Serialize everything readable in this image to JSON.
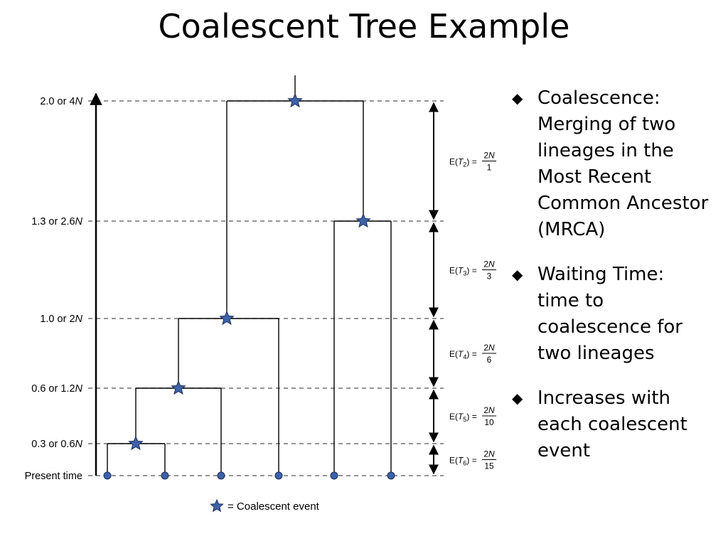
{
  "title": "Coalescent Tree Example",
  "levels": [
    {
      "id": "t0",
      "label": "Present time"
    },
    {
      "id": "t1",
      "label": "0.3 or 0.6",
      "label_italic": "N"
    },
    {
      "id": "t2",
      "label": "0.6 or 1.2",
      "label_italic": "N"
    },
    {
      "id": "t3",
      "label": "1.0 or 2",
      "label_italic": "N"
    },
    {
      "id": "t4",
      "label": "1.3 or 2.6",
      "label_italic": "N"
    },
    {
      "id": "t5",
      "label": "2.0 or 4",
      "label_italic": "N"
    }
  ],
  "waiting_times": [
    {
      "k": "2",
      "numerator": "2N",
      "denominator": "1",
      "from": "t4",
      "to": "t5"
    },
    {
      "k": "3",
      "numerator": "2N",
      "denominator": "3",
      "from": "t3",
      "to": "t4"
    },
    {
      "k": "4",
      "numerator": "2N",
      "denominator": "6",
      "from": "t2",
      "to": "t3"
    },
    {
      "k": "5",
      "numerator": "2N",
      "denominator": "10",
      "from": "t1",
      "to": "t2"
    },
    {
      "k": "6",
      "numerator": "2N",
      "denominator": "15",
      "from": "t0",
      "to": "t1"
    }
  ],
  "legend": {
    "text": "= Coalescent event"
  },
  "bullets": [
    {
      "lines": [
        "Coalescence:",
        "Merging of two",
        "lineages in the",
        "Most Recent",
        "Common Ancestor",
        "(MRCA)"
      ]
    },
    {
      "lines": [
        "Waiting Time:",
        "time to",
        "coalescence for",
        "two lineages"
      ]
    },
    {
      "lines": [
        "Increases with",
        "each coalescent",
        "event"
      ]
    }
  ],
  "colors": {
    "node": "#3d62a8",
    "node_stroke": "#1d2f5c",
    "line": "#000000",
    "dash": "#555555"
  }
}
